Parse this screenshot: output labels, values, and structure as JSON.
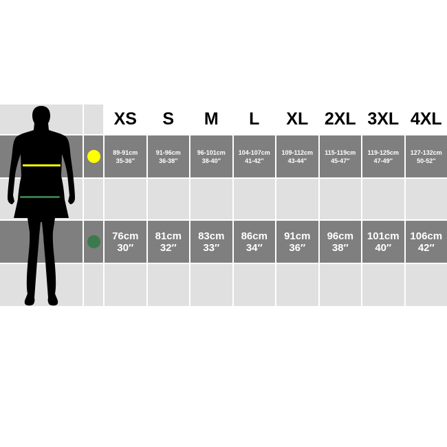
{
  "sizes": [
    "XS",
    "S",
    "M",
    "L",
    "XL",
    "2XL",
    "3XL",
    "4XL"
  ],
  "chest": {
    "color": "#ffff00",
    "values": [
      [
        "89-91cm",
        "35-36″"
      ],
      [
        "91-96cm",
        "36-38″"
      ],
      [
        "96-101cm",
        "38-40″"
      ],
      [
        "104-107cm",
        "41-42″"
      ],
      [
        "109-112cm",
        "43-44″"
      ],
      [
        "115-119cm",
        "45-47″"
      ],
      [
        "119-125cm",
        "47-49″"
      ],
      [
        "127-132cm",
        "50-52″"
      ]
    ]
  },
  "waist": {
    "color": "#3a7a4c",
    "values": [
      [
        "76cm",
        "30″"
      ],
      [
        "81cm",
        "32″"
      ],
      [
        "83cm",
        "33″"
      ],
      [
        "86cm",
        "34″"
      ],
      [
        "91cm",
        "36″"
      ],
      [
        "96cm",
        "38″"
      ],
      [
        "101cm",
        "40″"
      ],
      [
        "106cm",
        "42″"
      ]
    ]
  }
}
